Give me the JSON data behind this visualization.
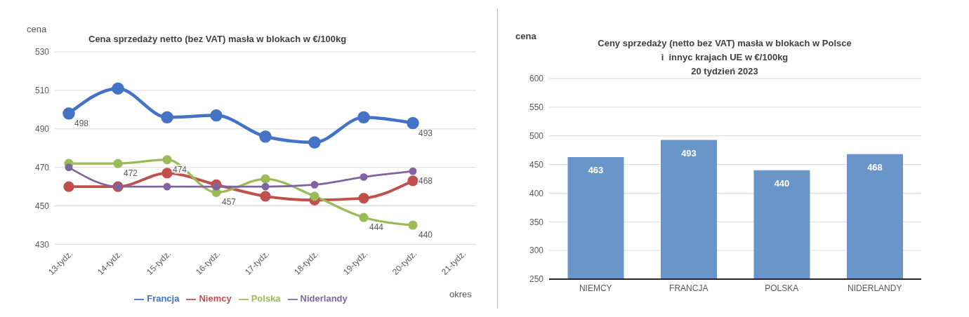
{
  "chart_data": [
    {
      "type": "line",
      "title": "Cena sprzedaży netto (bez VAT) masła w blokach w €/100kg",
      "ylabel": "cena",
      "xlabel": "okres",
      "categories": [
        "13-tydz.",
        "14-tydz.",
        "15-tydz.",
        "16-tydz.",
        "17-tydz.",
        "18-tydz.",
        "19-tydz.",
        "20-tydz.",
        "21-tydz."
      ],
      "series": [
        {
          "name": "Francja",
          "color": "#4472c4",
          "values": [
            498,
            511,
            496,
            497,
            486,
            483,
            496,
            493,
            null
          ],
          "value_labels": [
            "498",
            null,
            null,
            null,
            null,
            null,
            null,
            "493",
            null
          ]
        },
        {
          "name": "Niemcy",
          "color": "#c0504d",
          "values": [
            460,
            460,
            467,
            461,
            455,
            453,
            454,
            463,
            null
          ]
        },
        {
          "name": "Polska",
          "color": "#9bbb59",
          "values": [
            472,
            472,
            474,
            457,
            464,
            455,
            444,
            440,
            null
          ],
          "value_labels": [
            null,
            "472",
            "474",
            "457",
            null,
            null,
            "444",
            "440",
            null
          ]
        },
        {
          "name": "Niderlandy",
          "color": "#8064a2",
          "values": [
            470,
            460,
            460,
            460,
            460,
            461,
            465,
            468,
            null
          ],
          "value_labels": [
            null,
            null,
            null,
            null,
            null,
            null,
            null,
            "468",
            null
          ]
        }
      ],
      "ylim": [
        430,
        530
      ],
      "yticks": [
        430,
        450,
        470,
        490,
        510,
        530
      ],
      "grid": "y",
      "legend": "bottom",
      "marker": "circle"
    },
    {
      "type": "bar",
      "title": "Ceny sprzedaży (netto bez VAT) masła w blokach w Polsce\ni  innyc krajach UE w €/100kg\n20 tydzień 2023",
      "ylabel": "cena",
      "categories": [
        "NIEMCY",
        "FRANCJA",
        "POLSKA",
        "NIDERLANDY"
      ],
      "values": [
        463,
        493,
        440,
        468
      ],
      "color": "#6a95c9",
      "ylim": [
        250,
        600
      ],
      "yticks": [
        250,
        300,
        350,
        400,
        450,
        500,
        550,
        600
      ],
      "grid": "y",
      "data_labels": true
    }
  ]
}
